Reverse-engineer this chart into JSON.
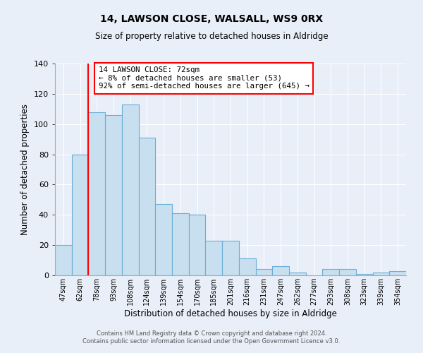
{
  "title_line1": "14, LAWSON CLOSE, WALSALL, WS9 0RX",
  "title_line2": "Size of property relative to detached houses in Aldridge",
  "xlabel": "Distribution of detached houses by size in Aldridge",
  "ylabel": "Number of detached properties",
  "categories": [
    "47sqm",
    "62sqm",
    "78sqm",
    "93sqm",
    "108sqm",
    "124sqm",
    "139sqm",
    "154sqm",
    "170sqm",
    "185sqm",
    "201sqm",
    "216sqm",
    "231sqm",
    "247sqm",
    "262sqm",
    "277sqm",
    "293sqm",
    "308sqm",
    "323sqm",
    "339sqm",
    "354sqm"
  ],
  "values": [
    20,
    80,
    108,
    106,
    113,
    91,
    47,
    41,
    40,
    23,
    23,
    11,
    4,
    6,
    2,
    0,
    4,
    4,
    1,
    2,
    3
  ],
  "bar_color": "#c8dff0",
  "bar_edge_color": "#6aaed6",
  "ylim": [
    0,
    140
  ],
  "yticks": [
    0,
    20,
    40,
    60,
    80,
    100,
    120,
    140
  ],
  "annotation_text": "14 LAWSON CLOSE: 72sqm\n← 8% of detached houses are smaller (53)\n92% of semi-detached houses are larger (645) →",
  "annotation_box_color": "white",
  "annotation_box_edge_color": "red",
  "footer_line1": "Contains HM Land Registry data © Crown copyright and database right 2024.",
  "footer_line2": "Contains public sector information licensed under the Open Government Licence v3.0.",
  "background_color": "#e8eff8",
  "grid_color": "#ffffff",
  "red_line_index": 1.5
}
